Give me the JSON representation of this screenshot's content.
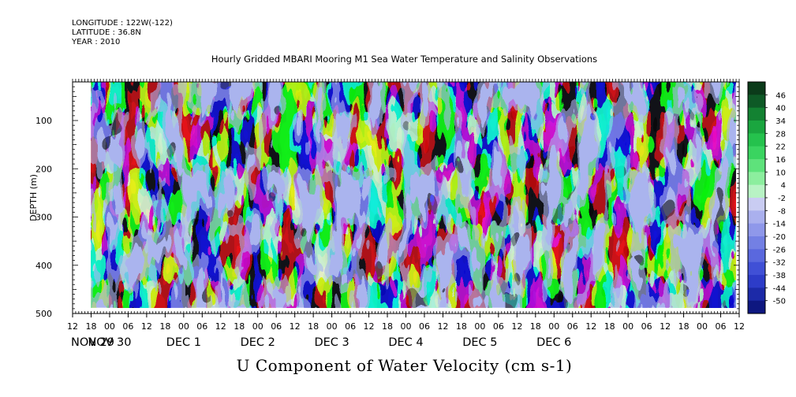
{
  "header": {
    "longitude": "LONGITUDE : 122W(-122)",
    "latitude": "LATITUDE : 36.8N",
    "year": "YEAR : 2010"
  },
  "chart_data": {
    "type": "heatmap",
    "title": "Hourly Gridded MBARI Mooring M1 Sea Water Temperature and Salinity Observations",
    "xlabel": "U Component of Water Velocity (cm s-1)",
    "ylabel": "DEPTH (m)",
    "ylim": [
      500,
      20
    ],
    "yticks": [
      100,
      200,
      300,
      400,
      500
    ],
    "yticklabels": [
      "100",
      "200",
      "300",
      "400",
      "500"
    ],
    "x_hour_labels": [
      "12",
      "18",
      "00",
      "06",
      "12",
      "18",
      "00",
      "06",
      "12",
      "18",
      "00",
      "06",
      "12",
      "18",
      "00",
      "06",
      "12",
      "18",
      "00",
      "06",
      "12",
      "18",
      "00",
      "06",
      "12",
      "18",
      "00",
      "06",
      "12",
      "18",
      "00",
      "06",
      "12",
      "18",
      "00",
      "06",
      "12"
    ],
    "x_day_labels": [
      "NOV 29",
      "NOV 30",
      "DEC  1",
      "DEC  2",
      "DEC  3",
      "DEC  4",
      "DEC  5",
      "DEC  6"
    ],
    "data_start_hour": 18,
    "colorbar": {
      "labels": [
        "46",
        "40",
        "34",
        "28",
        "22",
        "16",
        "10",
        "4",
        "-2",
        "-8",
        "-14",
        "-20",
        "-26",
        "-32",
        "-38",
        "-44",
        "-50"
      ],
      "colors": [
        "#0b3b1a",
        "#0e5a26",
        "#138232",
        "#1aa63f",
        "#25c24d",
        "#3ad460",
        "#5ee27b",
        "#8cee9e",
        "#b8f3c4",
        "#c9ccf2",
        "#aab0ee",
        "#8f98ea",
        "#7380e4",
        "#5a68de",
        "#4050d6",
        "#2d3cc8",
        "#1c2aa8",
        "#0e1780"
      ]
    }
  }
}
